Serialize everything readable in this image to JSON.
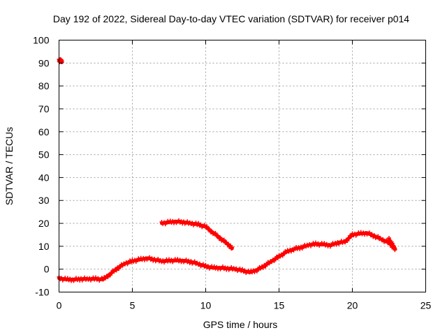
{
  "chart_data": {
    "type": "scatter",
    "title": "Day 192 of 2022, Sidereal Day-to-day VTEC variation (SDTVAR) for receiver p014",
    "xlabel": "GPS time / hours",
    "ylabel": "SDTVAR / TECUs",
    "xlim": [
      0,
      25
    ],
    "ylim": [
      -10,
      100
    ],
    "xticks": [
      "0",
      "5",
      "10",
      "15",
      "20",
      "25"
    ],
    "yticks": [
      "-10",
      "0",
      "10",
      "20",
      "30",
      "40",
      "50",
      "60",
      "70",
      "80",
      "90",
      "100"
    ],
    "grid": true,
    "colors": {
      "series": "#ff0000",
      "grid": "#a0a0a0",
      "axis": "#000000"
    },
    "series": [
      {
        "name": "SDTVAR",
        "segments": [
          {
            "x": [
              0.0,
              0.1,
              0.2
            ],
            "y": [
              91,
              91,
              91
            ]
          },
          {
            "x": [
              0.0,
              0.5,
              1.0,
              1.5,
              2.0,
              2.5,
              3.0,
              3.5,
              4.0,
              4.5,
              5.0,
              5.5,
              6.0,
              6.5,
              7.0,
              7.5,
              8.0,
              8.5,
              9.0,
              9.5,
              10.0,
              10.5,
              11.0,
              11.5,
              12.0,
              12.5,
              13.0,
              13.5,
              14.0,
              14.5,
              15.0,
              15.5,
              16.0,
              16.5,
              17.0,
              17.5,
              18.0,
              18.5,
              19.0,
              19.5,
              20.0,
              20.5,
              21.0,
              21.5,
              22.0,
              22.5,
              22.9
            ],
            "y": [
              -4,
              -4.5,
              -4.5,
              -4.3,
              -4.3,
              -4.2,
              -4.5,
              -2,
              0.5,
              2.5,
              3.5,
              4.2,
              4.8,
              4.2,
              3.5,
              3.7,
              3.8,
              3.7,
              3.2,
              2.3,
              1.2,
              0.6,
              0.6,
              0.3,
              0.1,
              -0.6,
              -1.4,
              -0.3,
              1.5,
              3.5,
              5.5,
              7.5,
              8.8,
              9.5,
              10.5,
              11.0,
              10.8,
              10.5,
              11.5,
              12.0,
              15.0,
              15.5,
              15.8,
              14.5,
              13.0,
              11.5,
              8.8
            ]
          },
          {
            "x": [
              7.0,
              7.5,
              8.0,
              8.5,
              9.0,
              9.5,
              10.0,
              10.5,
              11.0,
              11.5,
              11.8
            ],
            "y": [
              20,
              20.5,
              20.8,
              20.5,
              20.0,
              19.5,
              18.5,
              16.0,
              13.5,
              11.0,
              9.0
            ]
          },
          {
            "x": [
              22.5,
              22.7,
              22.9
            ],
            "y": [
              13,
              11,
              9
            ]
          }
        ]
      }
    ]
  }
}
